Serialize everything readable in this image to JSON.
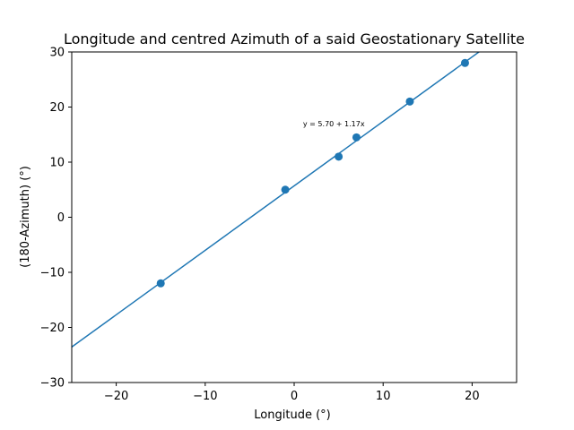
{
  "chart_data": {
    "type": "scatter",
    "title": "Longitude and centred Azimuth of a said Geostationary Satellite",
    "xlabel": "Longitude (°)",
    "ylabel": "(180-Azimuth) (°)",
    "xlim": [
      -25,
      25
    ],
    "ylim": [
      -30,
      30
    ],
    "xticks": [
      -20,
      -10,
      0,
      10,
      20
    ],
    "yticks": [
      -30,
      -20,
      -10,
      0,
      10,
      20,
      30
    ],
    "xtick_labels": [
      "−20",
      "−10",
      "0",
      "10",
      "20"
    ],
    "ytick_labels": [
      "−30",
      "−20",
      "−10",
      "0",
      "10",
      "20",
      "30"
    ],
    "grid": false,
    "series": [
      {
        "marker": "circle",
        "x": [
          -15,
          -1,
          5,
          7,
          13,
          19.2
        ],
        "y": [
          -12,
          5,
          11,
          14.5,
          21,
          28
        ]
      }
    ],
    "fit_line": {
      "intercept": 5.7,
      "slope": 1.17
    },
    "annotation": {
      "text": "y = 5.70 + 1.17x",
      "x": 1,
      "y": 17
    },
    "colors": {
      "series": "#1f77b4"
    }
  }
}
